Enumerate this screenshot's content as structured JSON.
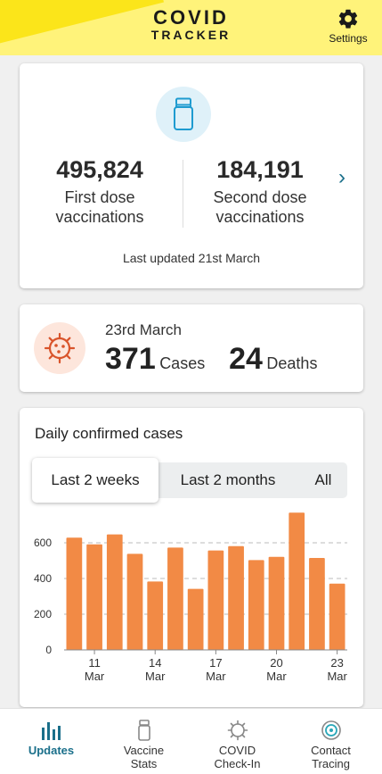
{
  "header": {
    "logo_line1": "COVID",
    "logo_line2": "TRACKER",
    "settings_label": "Settings"
  },
  "vaccine": {
    "first_value": "495,824",
    "first_label_1": "First dose",
    "first_label_2": "vaccinations",
    "second_value": "184,191",
    "second_label_1": "Second dose",
    "second_label_2": "vaccinations",
    "updated": "Last updated 21st March"
  },
  "cases": {
    "date": "23rd March",
    "cases_value": "371",
    "cases_label": "Cases",
    "deaths_value": "24",
    "deaths_label": "Deaths"
  },
  "chart_section": {
    "title": "Daily confirmed cases",
    "tabs": [
      "Last 2 weeks",
      "Last 2 months",
      "All"
    ],
    "active_tab": "Last 2 weeks"
  },
  "chart_data": {
    "type": "bar",
    "title": "Daily confirmed cases",
    "categories": [
      "10 Mar",
      "11 Mar",
      "12 Mar",
      "13 Mar",
      "14 Mar",
      "15 Mar",
      "16 Mar",
      "17 Mar",
      "18 Mar",
      "19 Mar",
      "20 Mar",
      "21 Mar",
      "22 Mar",
      "23 Mar"
    ],
    "values": [
      629,
      591,
      647,
      538,
      383,
      573,
      342,
      557,
      581,
      503,
      521,
      769,
      515,
      371
    ],
    "x_tick_labels": [
      {
        "day": "11",
        "month": "Mar"
      },
      {
        "day": "14",
        "month": "Mar"
      },
      {
        "day": "17",
        "month": "Mar"
      },
      {
        "day": "20",
        "month": "Mar"
      },
      {
        "day": "23",
        "month": "Mar"
      }
    ],
    "x_tick_indices": [
      1,
      4,
      7,
      10,
      13
    ],
    "y_ticks": [
      0,
      200,
      400,
      600
    ],
    "ylim": [
      0,
      800
    ],
    "grid": true,
    "bar_color": "#f28a45"
  },
  "nav": {
    "items": [
      {
        "label_1": "Updates",
        "label_2": "",
        "icon": "bar-chart-icon"
      },
      {
        "label_1": "Vaccine",
        "label_2": "Stats",
        "icon": "vial-icon"
      },
      {
        "label_1": "COVID",
        "label_2": "Check-In",
        "icon": "virus-icon"
      },
      {
        "label_1": "Contact",
        "label_2": "Tracing",
        "icon": "contact-tracing-icon"
      }
    ],
    "active_color": "#1a6f8a"
  }
}
